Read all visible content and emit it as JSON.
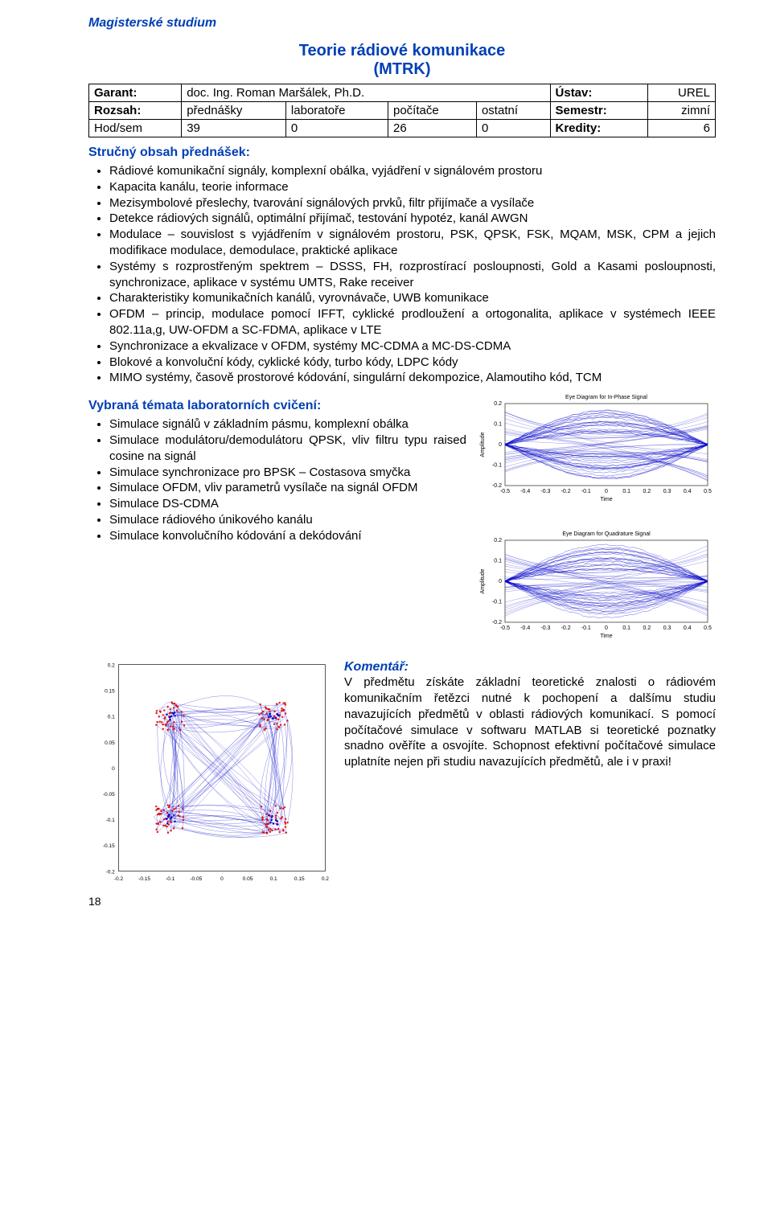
{
  "header": "Magisterské studium",
  "title": "Teorie rádiové komunikace",
  "subtitle": "(MTRK)",
  "table": {
    "row1": {
      "garant_lbl": "Garant:",
      "garant_val": "doc. Ing. Roman Maršálek, Ph.D.",
      "ustav_lbl": "Ústav:",
      "ustav_val": "UREL"
    },
    "row2": {
      "rozsah_lbl": "Rozsah:",
      "c1": "přednášky",
      "c2": "laboratoře",
      "c3": "počítače",
      "c4": "ostatní",
      "semestr_lbl": "Semestr:",
      "semestr_val": "zimní"
    },
    "row3": {
      "hodsem_lbl": "Hod/sem",
      "v1": "39",
      "v2": "0",
      "v3": "26",
      "v4": "0",
      "kredity_lbl": "Kredity:",
      "kredity_val": "6"
    }
  },
  "sections": {
    "strucny": "Stručný obsah přednášek:",
    "vybrana": "Vybraná témata laboratorních cvičení:",
    "komentar": "Komentář:"
  },
  "topics_main": [
    "Rádiové komunikační signály, komplexní obálka, vyjádření v signálovém prostoru",
    "Kapacita kanálu, teorie informace",
    "Mezisymbolové přeslechy, tvarování signálových prvků, filtr přijímače a vysílače",
    "Detekce rádiových signálů, optimální přijímač, testování hypotéz, kanál AWGN",
    "Modulace – souvislost s vyjádřením v signálovém prostoru, PSK, QPSK, FSK, MQAM, MSK, CPM a jejich modifikace modulace, demodulace, praktické aplikace",
    "Systémy s rozprostřeným spektrem – DSSS, FH, rozprostírací posloupnosti, Gold a Kasami posloupnosti, synchronizace, aplikace v systému UMTS, Rake receiver",
    "Charakteristiky komunikačních kanálů, vyrovnávače,  UWB komunikace",
    "OFDM – princip, modulace pomocí IFFT, cyklické prodloužení a ortogonalita, aplikace v systémech IEEE 802.11a,g, UW-OFDM a SC-FDMA, aplikace v LTE",
    "Synchronizace a ekvalizace v OFDM, systémy MC-CDMA a MC-DS-CDMA",
    "Blokové a konvoluční kódy, cyklické kódy, turbo kódy, LDPC kódy",
    "MIMO systémy, časově prostorové kódování, singulární dekompozice, Alamoutiho kód, TCM"
  ],
  "topics_lab": [
    "Simulace signálů v základním pásmu, komplexní obálka",
    "Simulace modulátoru/demodulátoru QPSK, vliv filtru typu raised cosine na signál",
    "Simulace synchronizace pro BPSK – Costasova smyčka",
    "Simulace OFDM, vliv parametrů vysílače na signál OFDM",
    "Simulace DS-CDMA",
    "Simulace rádiového únikového kanálu",
    "Simulace konvolučního kódování a dekódování"
  ],
  "comment": "V předmětu získáte základní teoretické znalosti o rádiovém komunikačním řetězci nutné k pochopení a dalšímu studiu navazujících předmětů v oblasti rádiových komunikací. S pomocí počítačové simulace v softwaru MATLAB si teoretické poznatky snadno ověříte a osvojíte. Schopnost efektivní počítačové simulace uplatníte nejen při studiu navazujících předmětů, ale i v praxi!",
  "eye": {
    "title1": "Eye Diagram for In-Phase Signal",
    "title2": "Eye Diagram for Quadrature Signal",
    "xlabel": "Time",
    "ylabel": "Amplitude",
    "xticks": [
      "-0.5",
      "-0.4",
      "-0.3",
      "-0.2",
      "-0.1",
      "0",
      "0.1",
      "0.2",
      "0.3",
      "0.4",
      "0.5"
    ],
    "yticks": [
      "-0.2",
      "-0.1",
      "0",
      "0.1",
      "0.2"
    ],
    "line_color": "#0000c8",
    "bg": "#ffffff",
    "box": "#000000"
  },
  "scatter": {
    "xticks": [
      "-0.2",
      "-0.15",
      "-0.1",
      "-0.05",
      "0",
      "0.05",
      "0.1",
      "0.15",
      "0.2"
    ],
    "yticks": [
      "-0.2",
      "-0.15",
      "-0.1",
      "-0.05",
      "0",
      "0.05",
      "0.1",
      "0.15",
      "0.2"
    ],
    "line_color": "#0000c8",
    "pt_color_red": "#e00000",
    "pt_color_blue": "#0000c8",
    "bg": "#ffffff",
    "box": "#000000",
    "centers": [
      [
        0.1,
        0.1
      ],
      [
        -0.1,
        0.1
      ],
      [
        -0.1,
        -0.1
      ],
      [
        0.1,
        -0.1
      ]
    ]
  },
  "page_number": "18"
}
